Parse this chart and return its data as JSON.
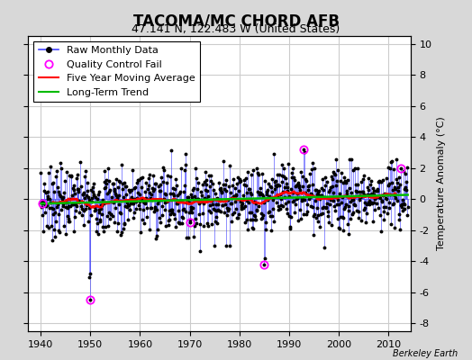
{
  "title": "TACOMA/MC CHORD AFB",
  "subtitle": "47.141 N, 122.483 W (United States)",
  "watermark": "Berkeley Earth",
  "ylabel": "Temperature Anomaly (°C)",
  "ylim": [
    -8.5,
    10.5
  ],
  "yticks": [
    -8,
    -6,
    -4,
    -2,
    0,
    2,
    4,
    6,
    8,
    10
  ],
  "xlim": [
    1937.5,
    2014.5
  ],
  "xticks": [
    1940,
    1950,
    1960,
    1970,
    1980,
    1990,
    2000,
    2010
  ],
  "start_year": 1940,
  "end_year": 2013,
  "raw_line_color": "#4444ff",
  "raw_dot_color": "#000000",
  "ma_color": "#ff0000",
  "trend_color": "#00bb00",
  "qc_color": "#ff00ff",
  "plot_bg_color": "#ffffff",
  "fig_bg_color": "#d8d8d8",
  "grid_color": "#cccccc",
  "legend_fontsize": 8,
  "title_fontsize": 12,
  "subtitle_fontsize": 9,
  "tick_fontsize": 8
}
